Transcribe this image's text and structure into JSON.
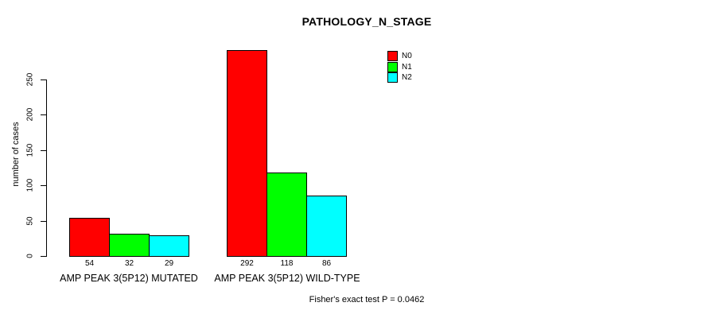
{
  "chart_data": {
    "type": "bar",
    "title": "PATHOLOGY_N_STAGE",
    "ylabel": "number of cases",
    "xlabel": "",
    "ylim": [
      0,
      250
    ],
    "yticks": [
      0,
      50,
      100,
      150,
      200,
      250
    ],
    "grid": false,
    "legend_position": "top-right-inside",
    "categories": [
      "AMP PEAK 3(5P12) MUTATED",
      "AMP PEAK 3(5P12) WILD-TYPE"
    ],
    "series": [
      {
        "name": "N0",
        "color": "#ff0000",
        "values": [
          54,
          292
        ]
      },
      {
        "name": "N1",
        "color": "#00ff00",
        "values": [
          32,
          118
        ]
      },
      {
        "name": "N2",
        "color": "#00ffff",
        "values": [
          29,
          86
        ]
      }
    ],
    "bar_value_labels_shown": true,
    "footnote": "Fisher's exact test P = 0.0462",
    "colors": {
      "background": "#ffffff",
      "text": "#000000",
      "axis": "#000000"
    }
  }
}
